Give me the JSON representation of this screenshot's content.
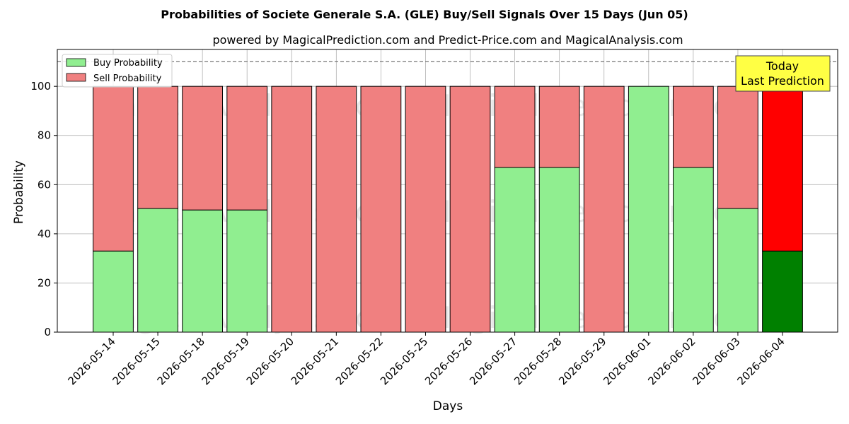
{
  "title": "Probabilities of Societe Generale S.A. (GLE) Buy/Sell Signals Over 15 Days (Jun 05)",
  "subtitle": "powered by MagicalPrediction.com and Predict-Price.com and MagicalAnalysis.com",
  "watermarks": [
    "MagicalAnalysis.com",
    "MagicalPrediction.com"
  ],
  "today_annotation": {
    "line1": "Today",
    "line2": "Last Prediction"
  },
  "colors": {
    "buy": "#90EE90",
    "sell": "#F08080",
    "today_buy": "#008000",
    "today_sell": "#FF0000",
    "annotation_bg": "#FFFF44"
  },
  "chart_data": {
    "type": "bar",
    "stacked": true,
    "xlabel": "Days",
    "ylabel": "Probability",
    "ylim": [
      0,
      115
    ],
    "yticks": [
      0,
      20,
      40,
      60,
      80,
      100
    ],
    "reference_line": 110,
    "grid": true,
    "legend_position": "top-left",
    "categories": [
      "2026-05-14",
      "2026-05-15",
      "2026-05-18",
      "2026-05-19",
      "2026-05-20",
      "2026-05-21",
      "2026-05-22",
      "2026-05-25",
      "2026-05-26",
      "2026-05-27",
      "2026-05-28",
      "2026-05-29",
      "2026-06-01",
      "2026-06-02",
      "2026-06-03",
      "2026-06-04"
    ],
    "series": [
      {
        "name": "Buy Probability",
        "values": [
          33,
          50.3,
          49.7,
          49.7,
          0,
          0,
          0,
          0,
          0,
          67,
          67,
          0,
          100,
          67,
          50.3,
          33
        ]
      },
      {
        "name": "Sell Probability",
        "values": [
          67,
          49.7,
          50.3,
          50.3,
          100,
          100,
          100,
          100,
          100,
          33,
          33,
          100,
          0,
          33,
          49.7,
          67
        ]
      }
    ]
  }
}
